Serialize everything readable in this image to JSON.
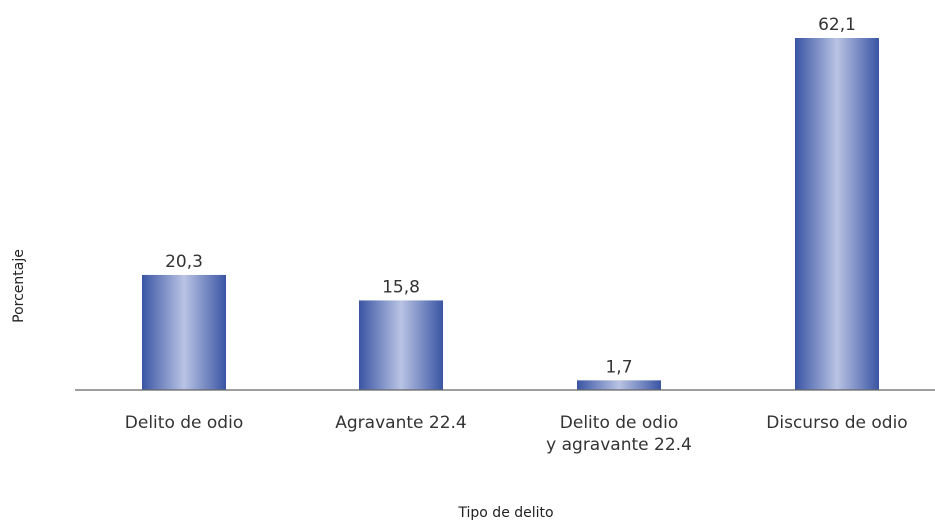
{
  "chart_data": {
    "type": "bar",
    "categories": [
      [
        "Delito de odio"
      ],
      [
        "Agravante 22.4"
      ],
      [
        "Delito de odio",
        "y agravante 22.4"
      ],
      [
        "Discurso de odio"
      ]
    ],
    "values": [
      20.3,
      15.8,
      1.7,
      62.1
    ],
    "value_labels": [
      "20,3",
      "15,8",
      "1,7",
      "62,1"
    ],
    "xlabel": "Tipo de delito",
    "ylabel": "Porcentaje",
    "ylim": [
      0,
      62.1
    ],
    "grid": false,
    "colors": {
      "bar_dark": "#3a55a4",
      "bar_light": "#b9c3e3",
      "axis": "#666666"
    }
  }
}
